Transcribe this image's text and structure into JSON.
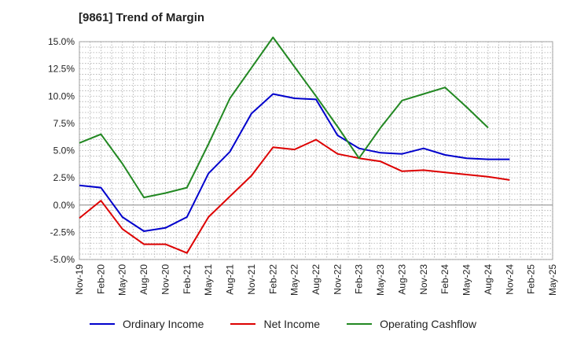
{
  "chart_data": {
    "type": "line",
    "title": "[9861]  Trend of Margin",
    "xlabel": "",
    "ylabel": "",
    "categories": [
      "Nov-19",
      "Feb-20",
      "May-20",
      "Aug-20",
      "Nov-20",
      "Feb-21",
      "May-21",
      "Aug-21",
      "Nov-21",
      "Feb-22",
      "May-22",
      "Aug-22",
      "Nov-22",
      "Feb-23",
      "May-23",
      "Aug-23",
      "Nov-23",
      "Feb-24",
      "May-24",
      "Aug-24",
      "Nov-24",
      "Feb-25",
      "May-25"
    ],
    "y_ticks": [
      "15.0%",
      "12.5%",
      "10.0%",
      "7.5%",
      "5.0%",
      "2.5%",
      "0.0%",
      "-2.5%",
      "-5.0%"
    ],
    "ylim": [
      -5,
      15
    ],
    "grid": true,
    "legend_position": "bottom",
    "series": [
      {
        "name": "Ordinary Income",
        "color": "#0000cc",
        "values": [
          1.8,
          1.6,
          -1.1,
          -2.4,
          -2.1,
          -1.1,
          2.9,
          4.9,
          8.4,
          10.2,
          9.8,
          9.7,
          6.4,
          5.2,
          4.8,
          4.7,
          5.2,
          4.6,
          4.3,
          4.2,
          4.2,
          null,
          null
        ]
      },
      {
        "name": "Net Income",
        "color": "#dd0000",
        "values": [
          -1.2,
          0.4,
          -2.2,
          -3.6,
          -3.6,
          -4.4,
          -1.1,
          0.8,
          2.7,
          5.3,
          5.1,
          6.0,
          4.7,
          4.3,
          4.0,
          3.1,
          3.2,
          3.0,
          2.8,
          2.6,
          2.3,
          null,
          null
        ]
      },
      {
        "name": "Operating Cashflow",
        "color": "#228822",
        "values": [
          5.7,
          6.5,
          3.8,
          0.7,
          1.1,
          1.6,
          5.6,
          9.8,
          12.6,
          15.4,
          12.7,
          10.0,
          7.2,
          4.3,
          7.1,
          9.6,
          10.2,
          10.8,
          9.0,
          7.1,
          null,
          null,
          null
        ]
      }
    ]
  }
}
